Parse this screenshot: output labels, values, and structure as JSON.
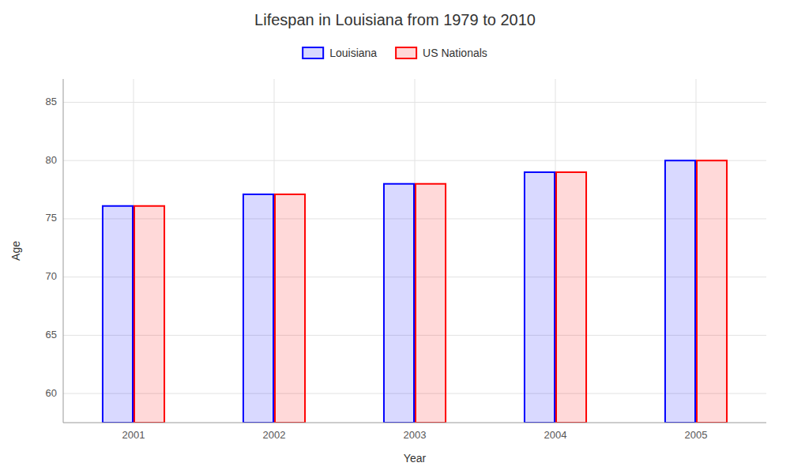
{
  "chart_data": {
    "type": "bar",
    "title": "Lifespan in Louisiana from 1979 to 2010",
    "xlabel": "Year",
    "ylabel": "Age",
    "categories": [
      "2001",
      "2002",
      "2003",
      "2004",
      "2005"
    ],
    "series": [
      {
        "name": "Louisiana",
        "color": "#0000ff",
        "values": [
          76.1,
          77.1,
          78.0,
          79.0,
          80.0
        ]
      },
      {
        "name": "US Nationals",
        "color": "#ff0000",
        "values": [
          76.1,
          77.1,
          78.0,
          79.0,
          80.0
        ]
      }
    ],
    "ylim": [
      57.5,
      87
    ],
    "yticks": [
      60,
      65,
      70,
      75,
      80,
      85
    ],
    "grid": true,
    "legend": "top"
  }
}
